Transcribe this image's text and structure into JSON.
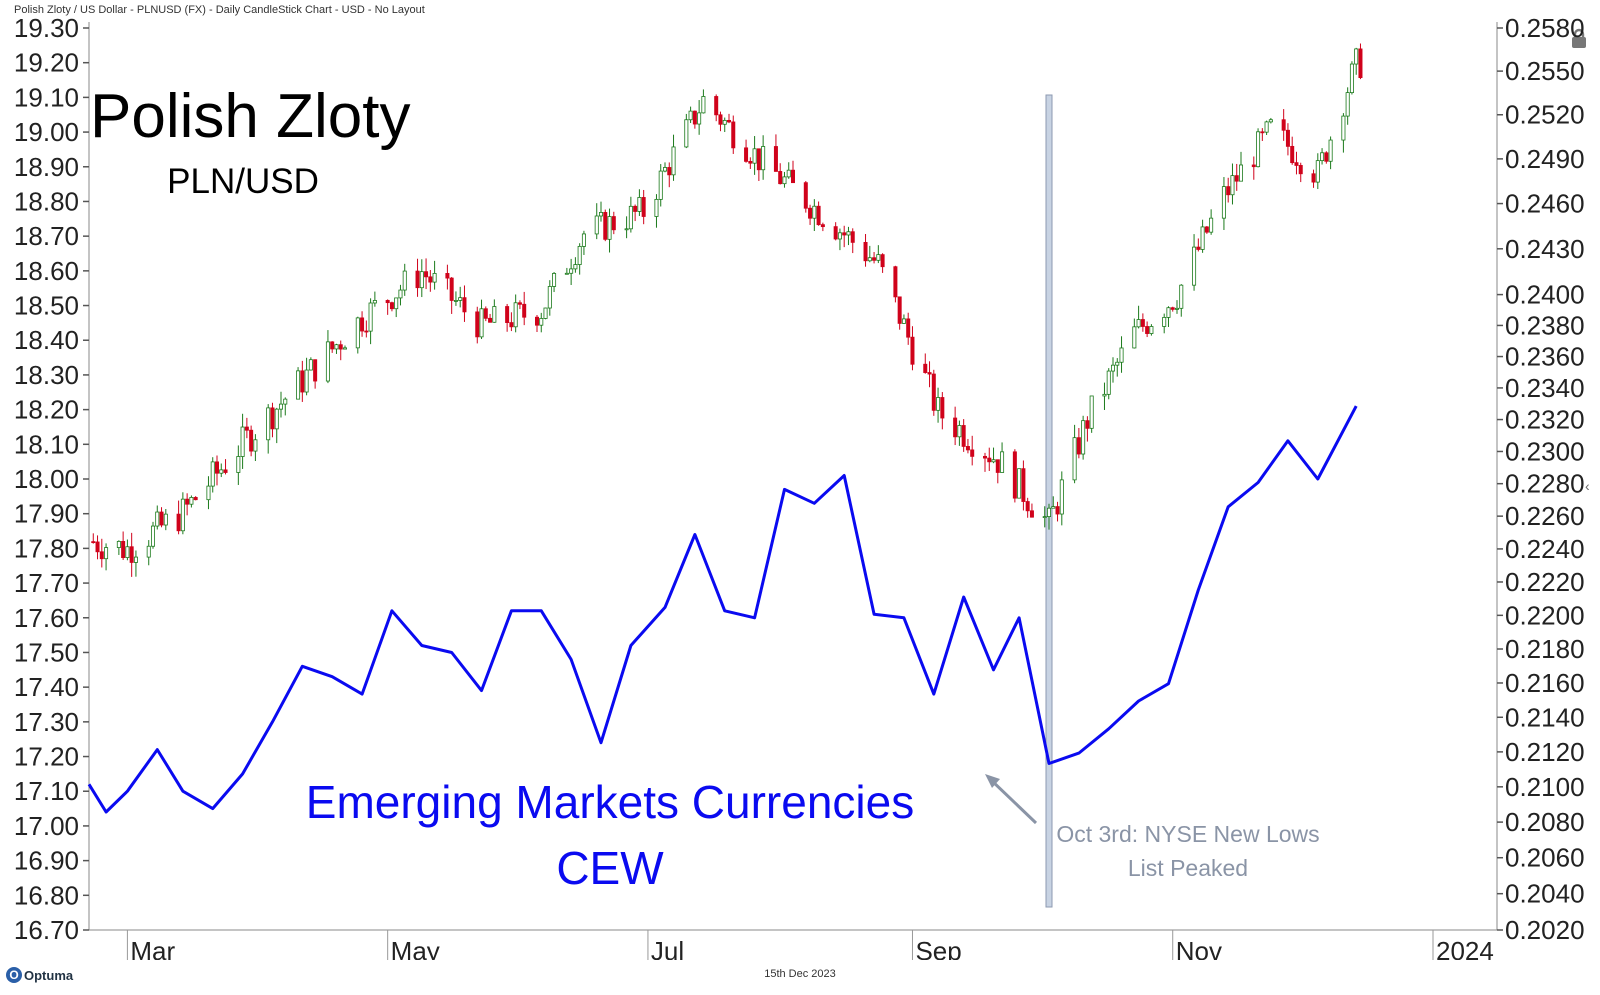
{
  "header": {
    "title": "Polish Zloty / US Dollar - PLNUSD (FX) - Daily CandleStick Chart - USD - No Layout"
  },
  "footer": {
    "brand": "Optuma",
    "date": "15th Dec 2023"
  },
  "icons": {
    "lock": "lock-icon",
    "collapse": "chevron-left-icon"
  },
  "colors": {
    "up": "#1b7a1b",
    "down": "#d0021b",
    "cew": "#0a0af0",
    "marker": "#c8d3e3",
    "annotation": "#8a94a6"
  },
  "chart_data": {
    "type": "candlestick+line",
    "title": "Polish Zloty",
    "subtitle": "PLN/USD",
    "overlay_label_line1": "Emerging Markets Currencies",
    "overlay_label_line2": "CEW",
    "annotation_line1": "Oct 3rd: NYSE New Lows",
    "annotation_line2": "List Peaked",
    "x_ticks": [
      "Mar",
      "May",
      "Jul",
      "Sep",
      "Nov",
      "2024"
    ],
    "x_tick_dates": [
      "2023-03-01",
      "2023-05-01",
      "2023-07-01",
      "2023-09-01",
      "2023-11-01",
      "2024-01-01"
    ],
    "x_range": [
      "2023-02-20",
      "2024-01-16"
    ],
    "left_axis": {
      "label": "",
      "ticks": [
        "19.30",
        "19.20",
        "19.10",
        "19.00",
        "18.90",
        "18.80",
        "18.70",
        "18.60",
        "18.50",
        "18.40",
        "18.30",
        "18.20",
        "18.10",
        "18.00",
        "17.90",
        "17.80",
        "17.70",
        "17.60",
        "17.50",
        "17.40",
        "17.30",
        "17.20",
        "17.10",
        "17.00",
        "16.90",
        "16.80",
        "16.70"
      ],
      "ylim": [
        16.7,
        19.3
      ]
    },
    "right_axis": {
      "label": "",
      "scale": "log",
      "ticks": [
        "0.2580",
        "0.2550",
        "0.2520",
        "0.2490",
        "0.2460",
        "0.2430",
        "0.2400",
        "0.2380",
        "0.2360",
        "0.2340",
        "0.2320",
        "0.2300",
        "0.2280",
        "0.2260",
        "0.2240",
        "0.2220",
        "0.2200",
        "0.2180",
        "0.2160",
        "0.2140",
        "0.2120",
        "0.2100",
        "0.2080",
        "0.2060",
        "0.2040",
        "0.2020"
      ],
      "ylim": [
        0.202,
        0.258
      ]
    },
    "marker_date": "2023-10-03",
    "plnusd_trend": {
      "dates": [
        "2023-02-20",
        "2023-03-01",
        "2023-03-14",
        "2023-03-28",
        "2023-04-11",
        "2023-04-25",
        "2023-05-09",
        "2023-05-23",
        "2023-06-06",
        "2023-06-16",
        "2023-06-30",
        "2023-07-14",
        "2023-07-27",
        "2023-08-10",
        "2023-08-24",
        "2023-09-07",
        "2023-09-21",
        "2023-10-03",
        "2023-10-12",
        "2023-10-23",
        "2023-11-02",
        "2023-11-13",
        "2023-11-24",
        "2023-12-05",
        "2023-12-14"
      ],
      "values": [
        0.2245,
        0.224,
        0.2262,
        0.2305,
        0.2345,
        0.2385,
        0.2415,
        0.238,
        0.239,
        0.244,
        0.2455,
        0.253,
        0.249,
        0.2455,
        0.242,
        0.2325,
        0.2295,
        0.2255,
        0.232,
        0.2375,
        0.24,
        0.2465,
        0.251,
        0.248,
        0.2555
      ]
    },
    "cew": {
      "dates": [
        "2023-02-20",
        "2023-02-24",
        "2023-03-01",
        "2023-03-08",
        "2023-03-14",
        "2023-03-21",
        "2023-03-28",
        "2023-04-04",
        "2023-04-11",
        "2023-04-18",
        "2023-04-25",
        "2023-05-02",
        "2023-05-09",
        "2023-05-16",
        "2023-05-23",
        "2023-05-30",
        "2023-06-06",
        "2023-06-13",
        "2023-06-20",
        "2023-06-27",
        "2023-07-05",
        "2023-07-12",
        "2023-07-19",
        "2023-07-26",
        "2023-08-02",
        "2023-08-09",
        "2023-08-16",
        "2023-08-23",
        "2023-08-30",
        "2023-09-06",
        "2023-09-13",
        "2023-09-20",
        "2023-09-26",
        "2023-10-03",
        "2023-10-10",
        "2023-10-17",
        "2023-10-24",
        "2023-10-31",
        "2023-11-07",
        "2023-11-14",
        "2023-11-21",
        "2023-11-28",
        "2023-12-05",
        "2023-12-14"
      ],
      "values": [
        17.12,
        17.04,
        17.1,
        17.22,
        17.1,
        17.05,
        17.15,
        17.3,
        17.46,
        17.43,
        17.38,
        17.62,
        17.52,
        17.5,
        17.39,
        17.62,
        17.62,
        17.48,
        17.24,
        17.52,
        17.63,
        17.84,
        17.62,
        17.6,
        17.97,
        17.93,
        18.01,
        17.61,
        17.6,
        17.38,
        17.66,
        17.45,
        17.6,
        17.18,
        17.21,
        17.28,
        17.36,
        17.41,
        17.68,
        17.92,
        17.99,
        18.11,
        18.0,
        18.21
      ]
    },
    "candles_visible": true
  }
}
